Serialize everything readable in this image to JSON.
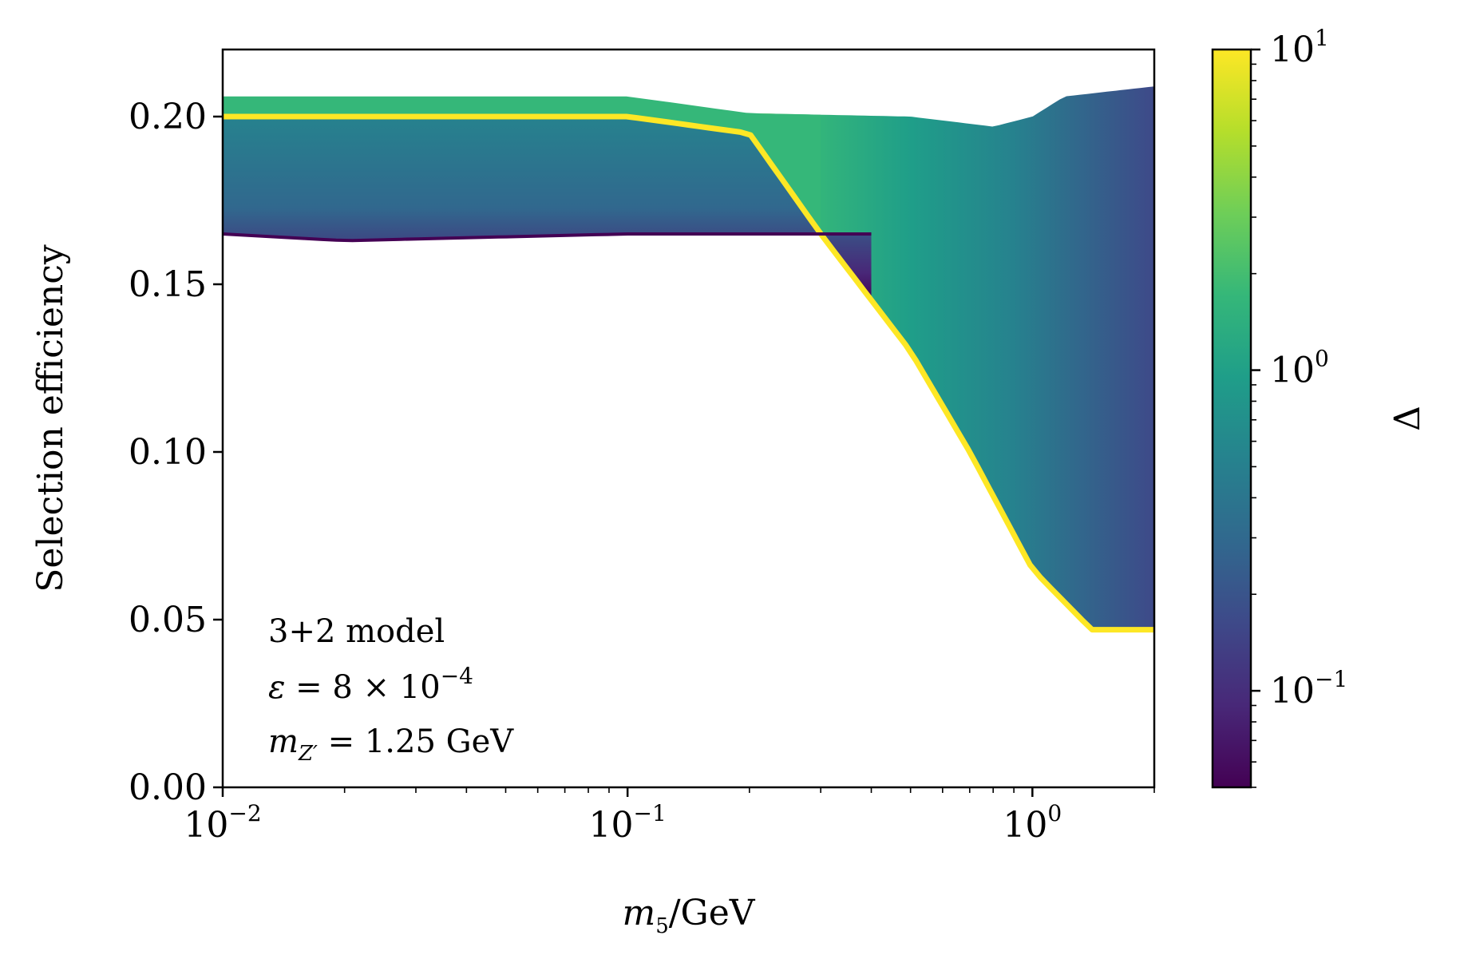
{
  "chart_data": {
    "type": "area",
    "xlabel": "m_5/GeV",
    "xlabel_main": "m",
    "xlabel_sub": "5",
    "xlabel_rest": "/GeV",
    "ylabel": "Selection efficiency",
    "x_scale": "log",
    "xlim": [
      0.01,
      2.0
    ],
    "ylim": [
      0.0,
      0.22
    ],
    "x_ticks": [
      {
        "value": 0.01,
        "base": "10",
        "exp": "−2"
      },
      {
        "value": 0.1,
        "base": "10",
        "exp": "−1"
      },
      {
        "value": 1.0,
        "base": "10",
        "exp": "0"
      }
    ],
    "y_ticks": [
      {
        "value": 0.0,
        "label": "0.00"
      },
      {
        "value": 0.05,
        "label": "0.05"
      },
      {
        "value": 0.1,
        "label": "0.10"
      },
      {
        "value": 0.15,
        "label": "0.15"
      },
      {
        "value": 0.2,
        "label": "0.20"
      }
    ],
    "colorbar": {
      "label": "Δ",
      "scale": "log",
      "range": [
        0.05,
        10
      ],
      "ticks": [
        {
          "value": 10,
          "base": "10",
          "exp": "1"
        },
        {
          "value": 1,
          "base": "10",
          "exp": "0"
        },
        {
          "value": 0.1,
          "base": "10",
          "exp": "−1"
        }
      ],
      "colormap": "viridis"
    },
    "band_limits": {
      "delta_min": {
        "x": [
          0.01,
          0.02,
          0.1,
          0.3,
          0.4
        ],
        "y": [
          0.165,
          0.163,
          0.165,
          0.165,
          0.165
        ]
      },
      "delta_max": {
        "x": [
          0.01,
          0.1,
          0.2,
          0.3,
          0.5,
          0.7,
          1.0,
          1.4,
          2.0
        ],
        "y": [
          0.2,
          0.2,
          0.195,
          0.165,
          0.13,
          0.1,
          0.065,
          0.047,
          0.047
        ]
      },
      "top_envelope": {
        "x": [
          0.01,
          0.1,
          0.2,
          0.5,
          0.8,
          1.0,
          1.2,
          2.0
        ],
        "y": [
          0.206,
          0.206,
          0.201,
          0.2,
          0.197,
          0.2,
          0.206,
          0.209
        ]
      }
    },
    "annotation": {
      "line1": "3+2 model",
      "line2_lhs": "ε",
      "line2_rhs": "= 8 × 10",
      "line2_exp": "−4",
      "line3_lhs": "m",
      "line3_sub": "Z′",
      "line3_rhs": "= 1.25 GeV"
    }
  },
  "colors": {
    "viridis": [
      "#440154",
      "#482878",
      "#3e4989",
      "#31688e",
      "#26828e",
      "#1f9e89",
      "#35b779",
      "#6ece58",
      "#b5de2b",
      "#fde725"
    ],
    "axes": "#000000",
    "background": "#ffffff"
  }
}
